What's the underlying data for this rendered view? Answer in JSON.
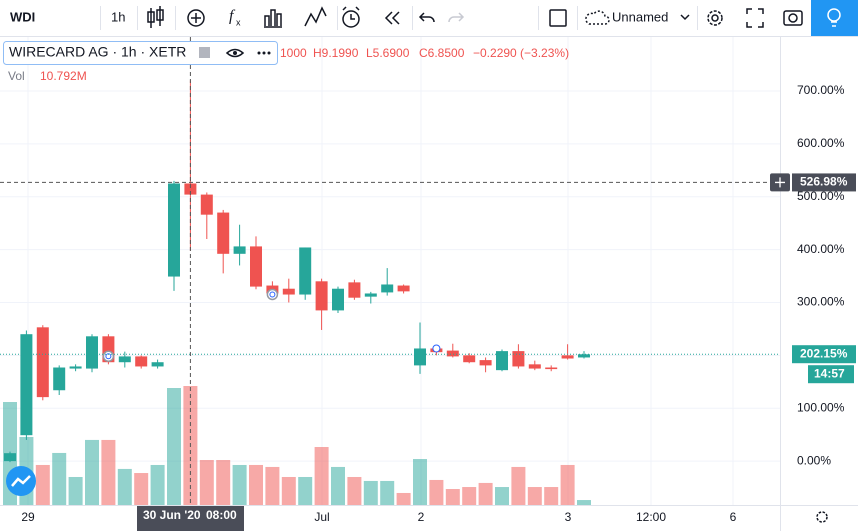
{
  "toolbar": {
    "symbol": "WDI",
    "interval": "1h",
    "layout_name": "Unnamed"
  },
  "legend": {
    "title": "WIRECARD AG · 1h · XETR",
    "open_fragment": "1000",
    "high": "H9.1990",
    "low": "L5.6900",
    "close": "C6.8500",
    "change": "−0.2290 (−3.23%)",
    "volume_label": "Vol",
    "volume_value": "10.792M"
  },
  "chart_data": {
    "type": "candlestick",
    "up_color": "#26a69a",
    "down_color": "#ef5350",
    "candles": {
      "open": [
        0,
        49,
        253,
        134,
        175,
        175,
        236,
        187,
        198,
        179,
        349,
        525,
        504,
        470,
        392,
        406,
        332,
        326,
        315,
        340,
        285,
        338,
        311,
        319,
        332,
        181,
        213,
        209,
        200,
        191,
        172,
        208,
        183,
        177,
        200,
        196
      ],
      "high": [
        18,
        247,
        257,
        181,
        183,
        240,
        240,
        207,
        200,
        192,
        530,
        720,
        508,
        475,
        447,
        425,
        340,
        345,
        404,
        345,
        330,
        343,
        320,
        365,
        334,
        262,
        217,
        222,
        204,
        196,
        211,
        221,
        190,
        181,
        221,
        208
      ],
      "low": [
        -2,
        40,
        115,
        125,
        170,
        168,
        183,
        177,
        175,
        175,
        322,
        398,
        420,
        355,
        370,
        325,
        315,
        300,
        305,
        248,
        280,
        305,
        298,
        313,
        317,
        165,
        200,
        196,
        185,
        168,
        170,
        175,
        172,
        170,
        192,
        194
      ],
      "close": [
        15,
        240,
        121,
        177,
        179,
        236,
        187,
        198,
        179,
        187,
        525,
        504,
        466,
        392,
        406,
        330,
        317,
        315,
        404,
        285,
        326,
        309,
        317,
        334,
        321,
        213,
        206,
        198,
        187,
        181,
        208,
        179,
        175,
        174,
        194,
        202
      ],
      "volume": [
        9.34,
        6.17,
        3.63,
        4.72,
        2.54,
        5.9,
        5.9,
        3.27,
        2.9,
        3.63,
        10.61,
        10.792,
        4.08,
        4.08,
        3.63,
        3.63,
        3.45,
        2.54,
        2.54,
        5.26,
        3.45,
        2.54,
        2.18,
        2.18,
        1.09,
        4.17,
        2.27,
        1.45,
        1.63,
        2.0,
        1.63,
        3.45,
        1.63,
        1.63,
        3.63,
        0.45
      ]
    },
    "ylim": [
      -83,
      802
    ],
    "yticks": [
      {
        "value": 0,
        "label": "0.00%"
      },
      {
        "value": 100,
        "label": "100.00%"
      },
      {
        "value": 200,
        "label": "200.00%"
      },
      {
        "value": 300,
        "label": "300.00%"
      },
      {
        "value": 400,
        "label": "400.00%"
      },
      {
        "value": 500,
        "label": "500.00%"
      },
      {
        "value": 600,
        "label": "600.00%"
      },
      {
        "value": 700,
        "label": "700.00%"
      }
    ],
    "x_labels": [
      "29",
      "Jul",
      "2",
      "3",
      "12:00",
      "6"
    ],
    "crosshair_price": {
      "value": 526.98,
      "label": "526.98%"
    },
    "last_price": {
      "value": 202.15,
      "label": "202.15%"
    },
    "countdown": "14:57",
    "crosshair_date": "30 Jun '20",
    "crosshair_time": "08:00"
  }
}
